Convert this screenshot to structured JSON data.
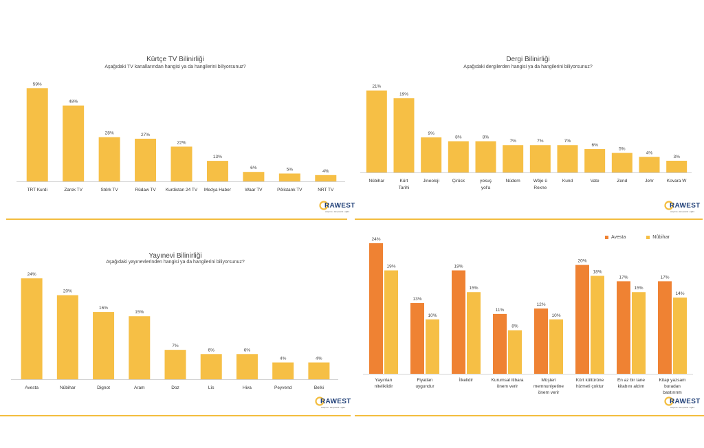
{
  "colors": {
    "bar_primary": "#f6bf45",
    "bar_avesta": "#ef8233",
    "bar_nubihar": "#f6bf45",
    "separator": "#f3bd3e",
    "logo_text": "#1f3f77",
    "logo_ring": "#f3bd3e"
  },
  "logo": {
    "name": "RAWEST",
    "tagline": "araştırma • danışmanlık • eğitim"
  },
  "chart_data": [
    {
      "id": "tv",
      "type": "bar",
      "title": "Kürtçe TV Bilinirliği",
      "subtitle": "Aşağıdaki TV kanallarından hangisi ya da hangilerini biliyorsunuz?",
      "categories": [
        "TRT Kurdi",
        "Zarok TV",
        "Stêrk TV",
        "Rûdaw TV",
        "Kurdistan 24 TV",
        "Medya Haber",
        "Waar TV",
        "Pêlistank TV",
        "NRT TV"
      ],
      "values": [
        59,
        48,
        28,
        27,
        22,
        13,
        6,
        5,
        4
      ],
      "value_labels": [
        "59%",
        "48%",
        "28%",
        "27%",
        "22%",
        "13%",
        "6%",
        "5%",
        "4%"
      ],
      "ylim": [
        0,
        60
      ]
    },
    {
      "id": "dergi",
      "type": "bar",
      "title": "Dergi Bilinirliği",
      "subtitle": "Aşağıdaki dergilerden hangisi ya da hangilerini biliyorsunuz?",
      "categories": [
        "Nûbihar",
        "Kürt Tarihi",
        "Jineoloji",
        "Çirûsk",
        "yokuş yol'a",
        "Nûdem",
        "Wêje û Rexne",
        "Kund",
        "Vate",
        "Zend",
        "Jehr",
        "Kovara W"
      ],
      "values": [
        21,
        19,
        9,
        8,
        8,
        7,
        7,
        7,
        6,
        5,
        4,
        3
      ],
      "value_labels": [
        "21%",
        "19%",
        "9%",
        "8%",
        "8%",
        "7%",
        "7%",
        "7%",
        "6%",
        "5%",
        "4%",
        "3%"
      ],
      "ylim": [
        0,
        22
      ]
    },
    {
      "id": "yayinevi",
      "type": "bar",
      "title": "Yayınevi Bilinirliği",
      "subtitle": "Aşağıdaki yayınevlerinden hangisi ya da hangilerini biliyorsunuz?",
      "categories": [
        "Avesta",
        "Nûbihar",
        "Dignot",
        "Aram",
        "Doz",
        "Lîs",
        "Hiva",
        "Peyvend",
        "Belki"
      ],
      "values": [
        24,
        20,
        16,
        15,
        7,
        6,
        6,
        4,
        4
      ],
      "value_labels": [
        "24%",
        "20%",
        "16%",
        "15%",
        "7%",
        "6%",
        "6%",
        "4%",
        "4%"
      ],
      "ylim": [
        0,
        25
      ]
    },
    {
      "id": "compare",
      "type": "bar",
      "title": "",
      "subtitle": "",
      "legend_position": "top-right",
      "categories": [
        "Yayınları niteliklidir",
        "Fiyatları uygundur",
        "İlkelidir",
        "Kurumsal itibara önem verir",
        "Müşteri memnuniyetine önem verir",
        "Kürt kültürüne hizmeti çoktur",
        "En az bir tane kitabını aldım",
        "Kitap yazsam buradan bastırırım"
      ],
      "series": [
        {
          "name": "Avesta",
          "values": [
            24,
            13,
            19,
            11,
            12,
            20,
            17,
            17
          ],
          "value_labels": [
            "24%",
            "13%",
            "19%",
            "11%",
            "12%",
            "20%",
            "17%",
            "17%"
          ]
        },
        {
          "name": "Nûbihar",
          "values": [
            19,
            10,
            15,
            8,
            10,
            18,
            15,
            14
          ],
          "value_labels": [
            "19%",
            "10%",
            "15%",
            "8%",
            "10%",
            "18%",
            "15%",
            "14%"
          ]
        }
      ],
      "ylim": [
        0,
        25
      ]
    }
  ]
}
